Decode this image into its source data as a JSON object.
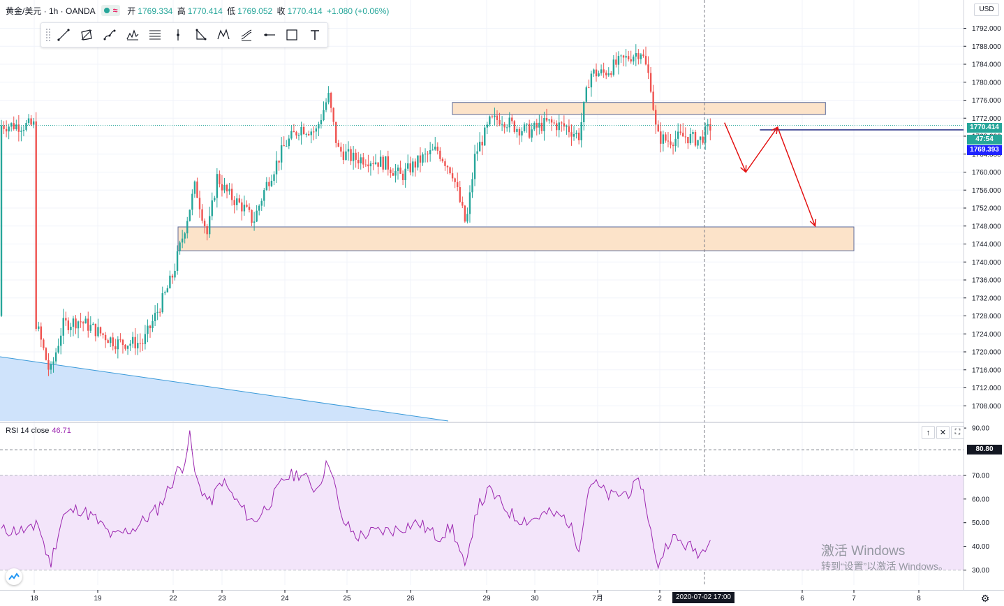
{
  "header": {
    "symbol": "黄金/美元 · 1h · OANDA",
    "ohlc": [
      {
        "label": "开",
        "value": "1769.334"
      },
      {
        "label": "高",
        "value": "1770.414"
      },
      {
        "label": "低",
        "value": "1769.052"
      },
      {
        "label": "收",
        "value": "1770.414"
      }
    ],
    "change": "+1.080 (+0.06%)"
  },
  "toolbar_tools": [
    "trend-line-icon",
    "channel-icon",
    "curve-icon",
    "pattern-icon",
    "fib-icon",
    "vertical-line-icon",
    "triangle-icon",
    "xabcd-icon",
    "pitchfork-icon",
    "horizontal-ray-icon",
    "rectangle-icon",
    "text-icon"
  ],
  "currency": "USD",
  "price_axis": {
    "ticks": [
      "1792.000",
      "1788.000",
      "1784.000",
      "1780.000",
      "1776.000",
      "1772.000",
      "1768.000",
      "1764.000",
      "1760.000",
      "1756.000",
      "1752.000",
      "1748.000",
      "1744.000",
      "1740.000",
      "1736.000",
      "1732.000",
      "1728.000",
      "1724.000",
      "1720.000",
      "1716.000",
      "1712.000",
      "1708.000"
    ],
    "last_price": "1770.414",
    "countdown": "47:54",
    "crosshair_price": "1769.393"
  },
  "rsi": {
    "title": "RSI 14 close",
    "value": "46.71",
    "ticks": [
      "90.00",
      "70.00",
      "60.00",
      "50.00",
      "40.00",
      "30.00"
    ],
    "crosshair_value": "80.80",
    "buttons": [
      "↑",
      "✕",
      "⛶"
    ]
  },
  "time_axis": {
    "ticks": [
      {
        "label": "18",
        "day": 0
      },
      {
        "label": "19",
        "day": 1
      },
      {
        "label": "22",
        "day": 2
      },
      {
        "label": "23",
        "day": 3
      },
      {
        "label": "24",
        "day": 4
      },
      {
        "label": "25",
        "day": 5
      },
      {
        "label": "26",
        "day": 6
      },
      {
        "label": "29",
        "day": 7
      },
      {
        "label": "30",
        "day": 8
      },
      {
        "label": "7月",
        "day": 9
      },
      {
        "label": "2",
        "day": 10
      },
      {
        "label": "6",
        "day": 12
      },
      {
        "label": "7",
        "day": 13
      },
      {
        "label": "8",
        "day": 14
      }
    ],
    "crosshair_label": "2020-07-02  17:00"
  },
  "watermark": {
    "line1": "激活 Windows",
    "line2": "转到“设置”以激活 Windows。"
  },
  "chart_data": {
    "type": "candlestick",
    "instrument": "XAU/USD 1h",
    "ylim": [
      1705,
      1796
    ],
    "zones": [
      {
        "from_day": 6.55,
        "to_day": 12.45,
        "top": 1775.5,
        "bottom": 1772.8
      },
      {
        "from_day": 2.1,
        "to_day": 13.0,
        "top": 1747.8,
        "bottom": 1742.5
      }
    ],
    "price_path": [
      {
        "day": 0.0,
        "price": 1728
      },
      {
        "day": 0.25,
        "price": 1715
      },
      {
        "day": 0.45,
        "price": 1726
      },
      {
        "day": 0.7,
        "price": 1727
      },
      {
        "day": 0.95,
        "price": 1725
      },
      {
        "day": 1.25,
        "price": 1722
      },
      {
        "day": 1.6,
        "price": 1722
      },
      {
        "day": 1.9,
        "price": 1733
      },
      {
        "day": 2.2,
        "price": 1746
      },
      {
        "day": 2.45,
        "price": 1757
      },
      {
        "day": 2.7,
        "price": 1746
      },
      {
        "day": 2.9,
        "price": 1759
      },
      {
        "day": 3.1,
        "price": 1755
      },
      {
        "day": 3.35,
        "price": 1752
      },
      {
        "day": 3.5,
        "price": 1749
      },
      {
        "day": 3.7,
        "price": 1757
      },
      {
        "day": 4.0,
        "price": 1766
      },
      {
        "day": 4.25,
        "price": 1770
      },
      {
        "day": 4.5,
        "price": 1769
      },
      {
        "day": 4.7,
        "price": 1777
      },
      {
        "day": 4.85,
        "price": 1765
      },
      {
        "day": 5.1,
        "price": 1763
      },
      {
        "day": 5.3,
        "price": 1763
      },
      {
        "day": 5.6,
        "price": 1762
      },
      {
        "day": 5.85,
        "price": 1759
      },
      {
        "day": 6.15,
        "price": 1763
      },
      {
        "day": 6.35,
        "price": 1765
      },
      {
        "day": 6.55,
        "price": 1760
      },
      {
        "day": 6.73,
        "price": 1748
      },
      {
        "day": 6.85,
        "price": 1764
      },
      {
        "day": 7.05,
        "price": 1771
      },
      {
        "day": 7.3,
        "price": 1772
      },
      {
        "day": 7.6,
        "price": 1770
      },
      {
        "day": 7.9,
        "price": 1769
      },
      {
        "day": 8.2,
        "price": 1771
      },
      {
        "day": 8.5,
        "price": 1770
      },
      {
        "day": 8.7,
        "price": 1768
      },
      {
        "day": 8.88,
        "price": 1782
      },
      {
        "day": 9.1,
        "price": 1782
      },
      {
        "day": 9.3,
        "price": 1784
      },
      {
        "day": 9.55,
        "price": 1786
      },
      {
        "day": 9.7,
        "price": 1787
      },
      {
        "day": 9.85,
        "price": 1780
      },
      {
        "day": 9.95,
        "price": 1768
      },
      {
        "day": 10.1,
        "price": 1767
      },
      {
        "day": 10.35,
        "price": 1768
      },
      {
        "day": 10.55,
        "price": 1767
      },
      {
        "day": 10.72,
        "price": 1770.4
      }
    ],
    "projection": [
      {
        "day": 10.9,
        "price": 1771
      },
      {
        "day": 11.2,
        "price": 1760
      },
      {
        "day": 11.65,
        "price": 1770
      },
      {
        "day": 12.25,
        "price": 1748
      }
    ],
    "resistance_line": {
      "from_day": 11.4,
      "price": 1769.4
    },
    "trend_line": {
      "from": {
        "day": -0.5,
        "price": 1719.5
      },
      "to": {
        "day": 6.5,
        "price": 1705
      }
    },
    "rsi_series": [
      {
        "day": 0.0,
        "value": 55
      },
      {
        "day": 0.25,
        "value": 32
      },
      {
        "day": 0.45,
        "value": 53
      },
      {
        "day": 0.7,
        "value": 56
      },
      {
        "day": 0.95,
        "value": 52
      },
      {
        "day": 1.2,
        "value": 44
      },
      {
        "day": 1.5,
        "value": 48
      },
      {
        "day": 1.8,
        "value": 56
      },
      {
        "day": 2.05,
        "value": 71
      },
      {
        "day": 2.2,
        "value": 74
      },
      {
        "day": 2.35,
        "value": 87
      },
      {
        "day": 2.45,
        "value": 69
      },
      {
        "day": 2.75,
        "value": 58
      },
      {
        "day": 3.0,
        "value": 68
      },
      {
        "day": 3.2,
        "value": 60
      },
      {
        "day": 3.5,
        "value": 50
      },
      {
        "day": 3.8,
        "value": 60
      },
      {
        "day": 4.0,
        "value": 69
      },
      {
        "day": 4.25,
        "value": 71
      },
      {
        "day": 4.5,
        "value": 64
      },
      {
        "day": 4.72,
        "value": 77
      },
      {
        "day": 4.9,
        "value": 52
      },
      {
        "day": 5.15,
        "value": 44
      },
      {
        "day": 5.4,
        "value": 46
      },
      {
        "day": 5.75,
        "value": 47
      },
      {
        "day": 6.1,
        "value": 50
      },
      {
        "day": 6.35,
        "value": 44
      },
      {
        "day": 6.55,
        "value": 48
      },
      {
        "day": 6.73,
        "value": 29
      },
      {
        "day": 6.85,
        "value": 55
      },
      {
        "day": 7.05,
        "value": 64
      },
      {
        "day": 7.3,
        "value": 58
      },
      {
        "day": 7.6,
        "value": 52
      },
      {
        "day": 7.9,
        "value": 51
      },
      {
        "day": 8.2,
        "value": 54
      },
      {
        "day": 8.5,
        "value": 52
      },
      {
        "day": 8.7,
        "value": 40
      },
      {
        "day": 8.88,
        "value": 68
      },
      {
        "day": 9.2,
        "value": 61
      },
      {
        "day": 9.5,
        "value": 63
      },
      {
        "day": 9.7,
        "value": 67
      },
      {
        "day": 9.82,
        "value": 52
      },
      {
        "day": 9.95,
        "value": 31
      },
      {
        "day": 10.15,
        "value": 44
      },
      {
        "day": 10.4,
        "value": 40
      },
      {
        "day": 10.58,
        "value": 37
      },
      {
        "day": 10.72,
        "value": 46.7
      }
    ],
    "rsi_levels": {
      "overbought": 70,
      "oversold": 30,
      "mid": 50,
      "crosshair": 80.8,
      "range": [
        27,
        92
      ]
    }
  },
  "colors": {
    "up": "#26a69a",
    "down": "#ef5350",
    "zone_fill": "#fce3c9",
    "zone_border": "#5b6a9a",
    "rsi_line": "#9c27b0",
    "rsi_band": "#f3e5fa",
    "arrow": "#e31212",
    "resistance": "#1a237e",
    "last_price_bg": "#26a69a",
    "crosshair_price_bg": "#1e22ff",
    "trend_fill": "#cfe3fb",
    "trend_line": "#3a9ad9"
  }
}
